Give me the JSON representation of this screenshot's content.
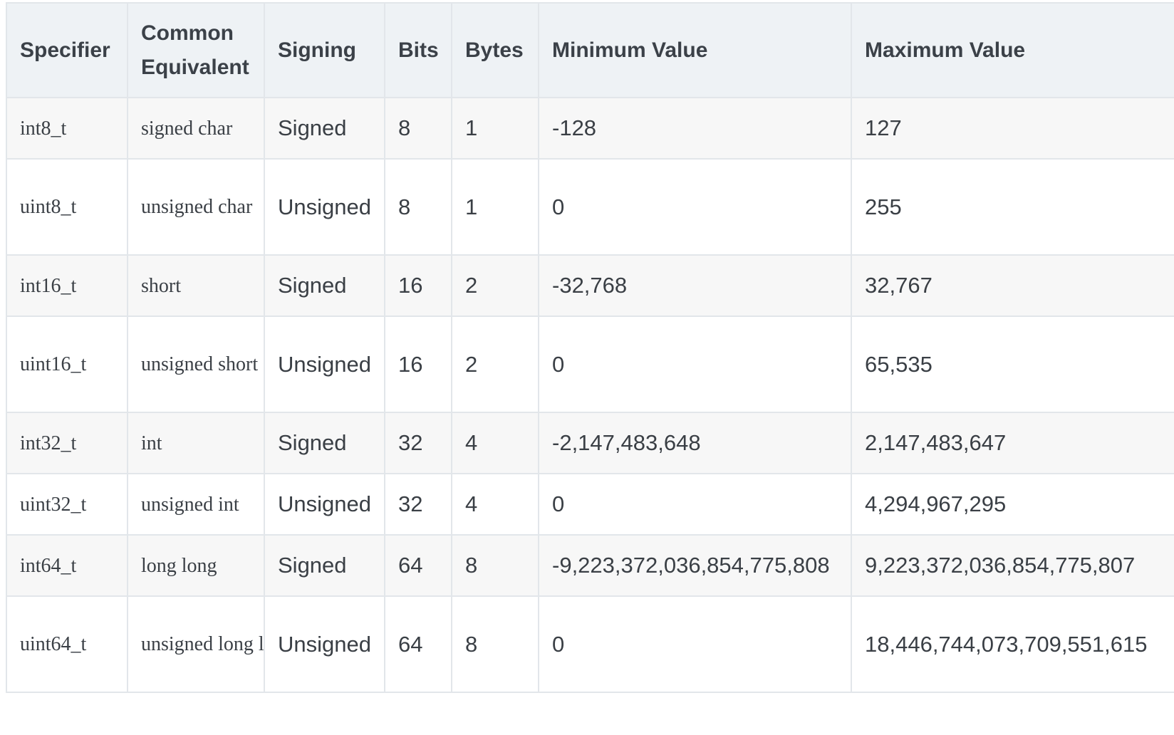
{
  "table": {
    "headers": {
      "specifier": "Specifier",
      "equivalent_line1": "Common",
      "equivalent_line2": "Equivalent",
      "signing": "Signing",
      "bits": "Bits",
      "bytes": "Bytes",
      "min": "Minimum Value",
      "max": "Maximum Value"
    },
    "rows": [
      {
        "specifier": "int8_t",
        "equivalent": "signed char",
        "signing": "Signed",
        "bits": "8",
        "bytes": "1",
        "min": "-128",
        "max": "127"
      },
      {
        "specifier": "uint8_t",
        "equivalent": "unsigned char",
        "signing": "Unsigned",
        "bits": "8",
        "bytes": "1",
        "min": "0",
        "max": "255"
      },
      {
        "specifier": "int16_t",
        "equivalent": "short",
        "signing": "Signed",
        "bits": "16",
        "bytes": "2",
        "min": "-32,768",
        "max": "32,767"
      },
      {
        "specifier": "uint16_t",
        "equivalent": "unsigned short",
        "signing": "Unsigned",
        "bits": "16",
        "bytes": "2",
        "min": "0",
        "max": "65,535"
      },
      {
        "specifier": "int32_t",
        "equivalent": "int",
        "signing": "Signed",
        "bits": "32",
        "bytes": "4",
        "min": "-2,147,483,648",
        "max": "2,147,483,647"
      },
      {
        "specifier": "uint32_t",
        "equivalent": "unsigned int",
        "signing": "Unsigned",
        "bits": "32",
        "bytes": "4",
        "min": "0",
        "max": "4,294,967,295"
      },
      {
        "specifier": "int64_t",
        "equivalent": "long long",
        "signing": "Signed",
        "bits": "64",
        "bytes": "8",
        "min": "-9,223,372,036,854,775,808",
        "max": "9,223,372,036,854,775,807"
      },
      {
        "specifier": "uint64_t",
        "equivalent": "unsigned long long",
        "signing": "Unsigned",
        "bits": "64",
        "bytes": "8",
        "min": "0",
        "max": "18,446,744,073,709,551,615"
      }
    ]
  }
}
